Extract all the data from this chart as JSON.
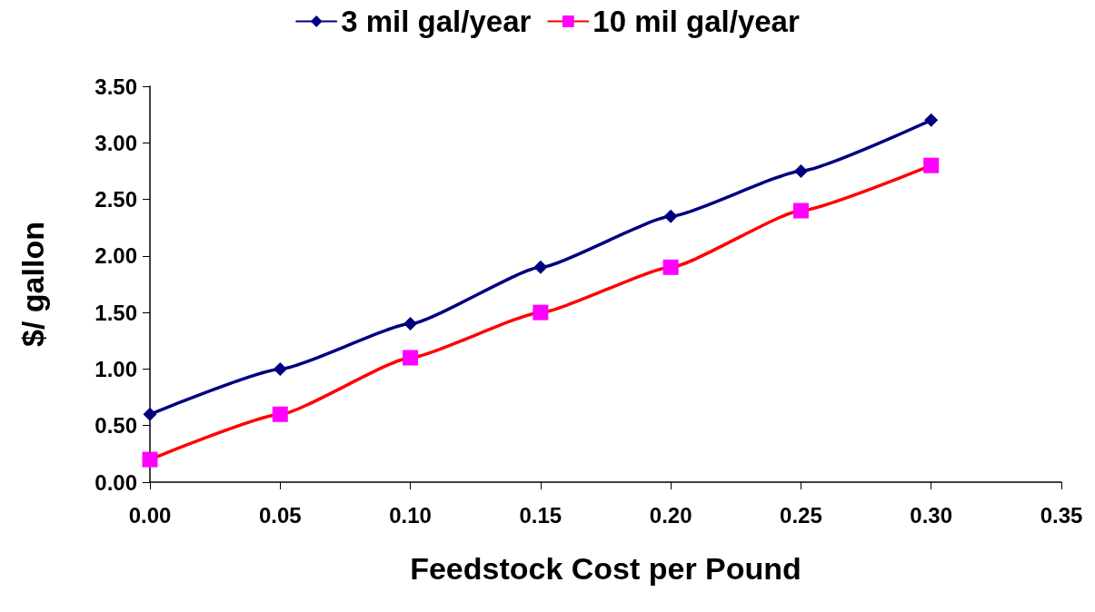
{
  "chart_data": {
    "type": "line",
    "xlabel": "Feedstock Cost per Pound",
    "ylabel": "$/ gallon",
    "x": [
      0,
      0.05,
      0.1,
      0.15,
      0.2,
      0.25,
      0.3
    ],
    "series": [
      {
        "name": "3 mil gal/year",
        "color": "#000080",
        "marker": "diamond",
        "values": [
          0.6,
          1.0,
          1.4,
          1.9,
          2.35,
          2.75,
          3.2
        ]
      },
      {
        "name": "10 mil gal/year",
        "color": "#ff0000",
        "colors": [
          "#ff00ff",
          "#ff00ff",
          "#ff00ff",
          "#ff00ff",
          "#ff00ff",
          "#ff00ff",
          "#ff00ff"
        ],
        "marker": "square",
        "values": [
          0.2,
          0.6,
          1.1,
          1.5,
          1.9,
          2.4,
          2.8
        ]
      }
    ],
    "xlim": [
      0,
      0.35
    ],
    "xticks": [
      {
        "value": 0,
        "label": "0.00"
      },
      {
        "value": 0.05,
        "label": "0.05"
      },
      {
        "value": 0.1,
        "label": "0.10"
      },
      {
        "value": 0.15,
        "label": "0.15"
      },
      {
        "value": 0.2,
        "label": "0.20"
      },
      {
        "value": 0.25,
        "label": "0.25"
      },
      {
        "value": 0.3,
        "label": "0.30"
      },
      {
        "value": 0.35,
        "label": "0.35"
      }
    ],
    "ylim": [
      0,
      3.5
    ],
    "yticks": [
      {
        "value": 0,
        "label": "0.00"
      },
      {
        "value": 0.5,
        "label": "0.50"
      },
      {
        "value": 1,
        "label": "1.00"
      },
      {
        "value": 1.5,
        "label": "1.50"
      },
      {
        "value": 2,
        "label": "2.00"
      },
      {
        "value": 2.5,
        "label": "2.50"
      },
      {
        "value": 3,
        "label": "3.00"
      },
      {
        "value": 3.5,
        "label": "3.50"
      }
    ],
    "grid": false,
    "legend": "top",
    "line_style": "solid"
  }
}
